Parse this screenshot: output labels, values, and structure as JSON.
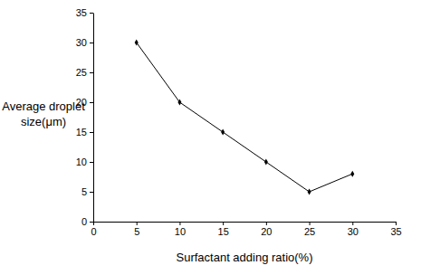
{
  "chart_data": {
    "type": "line",
    "x_label": "Surfactant adding ratio(%)",
    "y_label": [
      "Average droplet",
      "size(μm)"
    ],
    "x": [
      5,
      10,
      15,
      20,
      25,
      30
    ],
    "values": [
      30,
      20,
      15,
      10,
      5,
      8
    ],
    "color": "#000000",
    "marker": "diamond",
    "xlim": [
      0,
      35
    ],
    "xticks": [
      0,
      5,
      10,
      15,
      20,
      25,
      30,
      35
    ],
    "ylim": [
      0,
      35
    ],
    "yticks": [
      0,
      5,
      10,
      15,
      20,
      25,
      30,
      35
    ],
    "grid": false
  }
}
